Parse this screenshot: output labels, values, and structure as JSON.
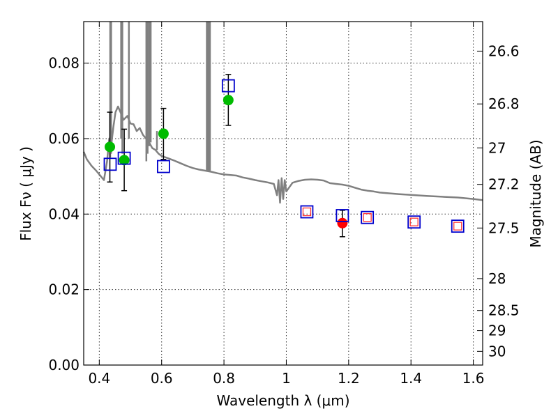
{
  "chart_data": {
    "type": "scatter",
    "xlabel": "Wavelength  λ (μm)",
    "ylabel": "Flux  Fν  ( μJy )",
    "y2label": "Magnitude (AB)",
    "xlim": [
      0.35,
      1.63
    ],
    "ylim": [
      0.0,
      0.091
    ],
    "xticks": [
      0.4,
      0.6,
      0.8,
      1.0,
      1.2,
      1.4,
      1.6
    ],
    "xtick_labels": [
      "0.4",
      "0.6",
      "0.8",
      "1",
      "1.2",
      "1.4",
      "1.6"
    ],
    "yticks": [
      0.0,
      0.02,
      0.04,
      0.06,
      0.08
    ],
    "ytick_labels": [
      "0.00",
      "0.02",
      "0.04",
      "0.06",
      "0.08"
    ],
    "y2ticks": [
      {
        "label": "26.6",
        "mag": 26.6
      },
      {
        "label": "26.8",
        "mag": 26.8
      },
      {
        "label": "27",
        "mag": 27.0
      },
      {
        "label": "27.2",
        "mag": 27.2
      },
      {
        "label": "27.5",
        "mag": 27.5
      },
      {
        "label": "28",
        "mag": 28.0
      },
      {
        "label": "28.5",
        "mag": 28.5
      },
      {
        "label": "29",
        "mag": 29.0
      },
      {
        "label": "30",
        "mag": 30.0
      }
    ],
    "grid": true,
    "series": [
      {
        "kind": "line",
        "color": "#808080",
        "points": [
          [
            0.35,
            0.0565
          ],
          [
            0.36,
            0.0545
          ],
          [
            0.375,
            0.0528
          ],
          [
            0.39,
            0.0515
          ],
          [
            0.405,
            0.05
          ],
          [
            0.415,
            0.049
          ],
          [
            0.425,
            0.054
          ],
          [
            0.432,
            0.06
          ],
          [
            0.438,
            0.058
          ],
          [
            0.445,
            0.063
          ],
          [
            0.452,
            0.067
          ],
          [
            0.46,
            0.0685
          ],
          [
            0.468,
            0.067
          ],
          [
            0.478,
            0.065
          ],
          [
            0.49,
            0.066
          ],
          [
            0.5,
            0.064
          ],
          [
            0.51,
            0.0638
          ],
          [
            0.52,
            0.062
          ],
          [
            0.53,
            0.0628
          ],
          [
            0.54,
            0.061
          ],
          [
            0.55,
            0.06
          ],
          [
            0.56,
            0.059
          ],
          [
            0.57,
            0.0575
          ],
          [
            0.58,
            0.057
          ],
          [
            0.59,
            0.056
          ],
          [
            0.6,
            0.0554
          ],
          [
            0.62,
            0.0548
          ],
          [
            0.64,
            0.0542
          ],
          [
            0.66,
            0.0535
          ],
          [
            0.68,
            0.0528
          ],
          [
            0.7,
            0.0522
          ],
          [
            0.72,
            0.0518
          ],
          [
            0.74,
            0.0515
          ],
          [
            0.76,
            0.0512
          ],
          [
            0.78,
            0.0508
          ],
          [
            0.8,
            0.0505
          ],
          [
            0.84,
            0.0502
          ],
          [
            0.86,
            0.0497
          ],
          [
            0.88,
            0.0494
          ],
          [
            0.9,
            0.049
          ],
          [
            0.92,
            0.0487
          ],
          [
            0.94,
            0.0484
          ],
          [
            0.96,
            0.048
          ],
          [
            0.97,
            0.045
          ],
          [
            0.975,
            0.049
          ],
          [
            0.98,
            0.043
          ],
          [
            0.985,
            0.0495
          ],
          [
            0.99,
            0.044
          ],
          [
            0.995,
            0.049
          ],
          [
            1.0,
            0.046
          ],
          [
            1.02,
            0.0483
          ],
          [
            1.04,
            0.0488
          ],
          [
            1.06,
            0.0491
          ],
          [
            1.08,
            0.0492
          ],
          [
            1.1,
            0.0491
          ],
          [
            1.12,
            0.0489
          ],
          [
            1.14,
            0.0482
          ],
          [
            1.16,
            0.048
          ],
          [
            1.18,
            0.0478
          ],
          [
            1.2,
            0.0475
          ],
          [
            1.22,
            0.047
          ],
          [
            1.24,
            0.0465
          ],
          [
            1.26,
            0.0462
          ],
          [
            1.28,
            0.046
          ],
          [
            1.3,
            0.0457
          ],
          [
            1.33,
            0.0455
          ],
          [
            1.36,
            0.0453
          ],
          [
            1.4,
            0.0451
          ],
          [
            1.45,
            0.0448
          ],
          [
            1.5,
            0.0446
          ],
          [
            1.55,
            0.0444
          ],
          [
            1.6,
            0.044
          ],
          [
            1.63,
            0.0437
          ]
        ],
        "spikes": [
          {
            "x": 0.435,
            "y_from": 0.055,
            "to_top": true
          },
          {
            "x": 0.438,
            "y_from": 0.056,
            "to_top": true
          },
          {
            "x": 0.47,
            "y_from": 0.06,
            "to_top": true
          },
          {
            "x": 0.474,
            "y_from": 0.056,
            "to_top": true
          },
          {
            "x": 0.495,
            "y_from": 0.06,
            "to_top": true
          },
          {
            "x": 0.551,
            "y_from": 0.054,
            "to_top": true
          },
          {
            "x": 0.555,
            "y_from": 0.056,
            "to_top": true
          },
          {
            "x": 0.56,
            "y_from": 0.058,
            "to_top": true
          },
          {
            "x": 0.565,
            "y_from": 0.059,
            "to_top": true
          },
          {
            "x": 0.585,
            "y_from": 0.057,
            "to_top": false,
            "y_to": 0.062
          },
          {
            "x": 0.745,
            "y_from": 0.0515,
            "to_top": true
          },
          {
            "x": 0.75,
            "y_from": 0.0515,
            "to_top": true
          },
          {
            "x": 0.755,
            "y_from": 0.0515,
            "to_top": true
          }
        ]
      },
      {
        "kind": "points",
        "marker": "circle",
        "color": "#00bb00",
        "points": [
          {
            "x": 0.434,
            "y": 0.0578,
            "err_lo": 0.0485,
            "err_hi": 0.067
          },
          {
            "x": 0.48,
            "y": 0.0543,
            "err_lo": 0.0462,
            "err_hi": 0.0625
          },
          {
            "x": 0.606,
            "y": 0.0613,
            "err_lo": 0.0545,
            "err_hi": 0.068
          },
          {
            "x": 0.814,
            "y": 0.0702,
            "err_lo": 0.0635,
            "err_hi": 0.077
          }
        ]
      },
      {
        "kind": "points",
        "marker": "circle",
        "color": "#ff0000",
        "points": [
          {
            "x": 1.18,
            "y": 0.0376,
            "err_lo": 0.034,
            "err_hi": 0.041
          }
        ]
      },
      {
        "kind": "points",
        "marker": "square",
        "color": "#0000cc",
        "points": [
          {
            "x": 0.435,
            "y": 0.0532
          },
          {
            "x": 0.48,
            "y": 0.0548
          },
          {
            "x": 0.606,
            "y": 0.0526
          },
          {
            "x": 0.814,
            "y": 0.074
          },
          {
            "x": 1.066,
            "y": 0.0406
          },
          {
            "x": 1.18,
            "y": 0.0396
          },
          {
            "x": 1.26,
            "y": 0.0391
          },
          {
            "x": 1.41,
            "y": 0.0379
          },
          {
            "x": 1.55,
            "y": 0.0368
          }
        ]
      },
      {
        "kind": "points",
        "marker": "small-square",
        "color": "#ff3333",
        "points": [
          {
            "x": 1.066,
            "y": 0.0406
          },
          {
            "x": 1.26,
            "y": 0.0391
          },
          {
            "x": 1.41,
            "y": 0.0379
          },
          {
            "x": 1.55,
            "y": 0.0368
          }
        ]
      }
    ]
  }
}
